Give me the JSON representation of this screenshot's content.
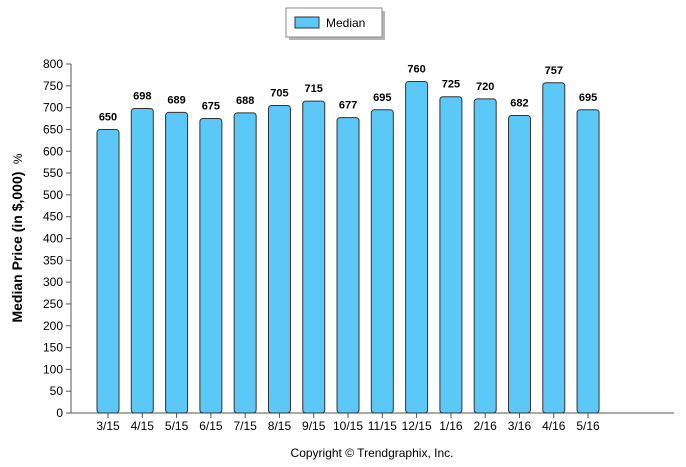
{
  "legend": {
    "label": "Median"
  },
  "credit": "Copyright © Trendgraphix, Inc.",
  "colors": {
    "bar_fill": "#5bc8f7",
    "bar_stroke": "#333333",
    "axis": "#555555"
  },
  "chart_data": {
    "type": "bar",
    "ylabel": "Median Price (in $,000) %",
    "ylabel_main": "Median Price (in $,000)",
    "ylabel_unit": "%",
    "ylim": [
      0,
      800
    ],
    "yticks": [
      0,
      50,
      100,
      150,
      200,
      250,
      300,
      350,
      400,
      450,
      500,
      550,
      600,
      650,
      700,
      750,
      800
    ],
    "grid": false,
    "legend_position": "top-center",
    "categories": [
      "3/15",
      "4/15",
      "5/15",
      "6/15",
      "7/15",
      "8/15",
      "9/15",
      "10/15",
      "11/15",
      "12/15",
      "1/16",
      "2/16",
      "3/16",
      "4/16",
      "5/16"
    ],
    "series": [
      {
        "name": "Median",
        "values": [
          650,
          698,
          689,
          675,
          688,
          705,
          715,
          677,
          695,
          760,
          725,
          720,
          682,
          757,
          695
        ]
      }
    ]
  }
}
